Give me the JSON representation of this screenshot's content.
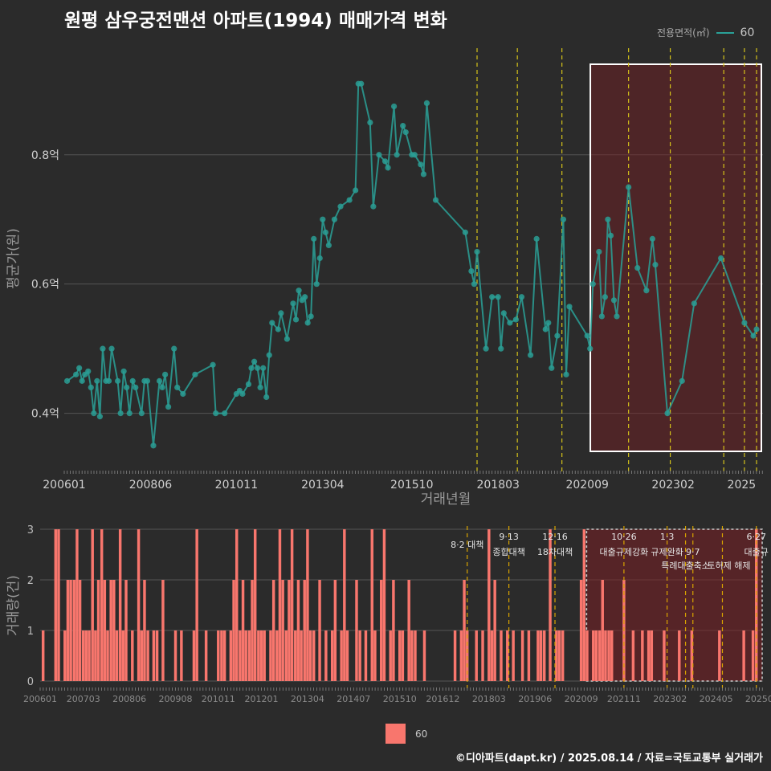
{
  "title": "원평 삼우궁전맨션 아파트(1994) 매매가격 변화",
  "legend": {
    "area_label": "전용면적(㎡)",
    "area_value": "60",
    "line_color": "#2aa198"
  },
  "bottom_legend": {
    "value": "60",
    "color": "#f8766d"
  },
  "credit": "©디아파트(dapt.kr) / 2025.08.14 / 자료=국토교통부 실거래가",
  "chart_data": [
    {
      "type": "line",
      "name": "price",
      "xlabel": "거래년월",
      "ylabel": "평균가(원)",
      "xlim": [
        2006.0,
        2025.6
      ],
      "ylim": [
        0.315,
        0.965
      ],
      "y_ticks": [
        {
          "v": 0.4,
          "label": "0.4억"
        },
        {
          "v": 0.6,
          "label": "0.6억"
        },
        {
          "v": 0.8,
          "label": "0.8억"
        }
      ],
      "x_ticks": [
        {
          "v": 2006.0,
          "label": "200601"
        },
        {
          "v": 2008.42,
          "label": "200806"
        },
        {
          "v": 2010.83,
          "label": "201011"
        },
        {
          "v": 2013.25,
          "label": "201304"
        },
        {
          "v": 2015.75,
          "label": "201510"
        },
        {
          "v": 2018.17,
          "label": "201803"
        },
        {
          "v": 2020.67,
          "label": "202009"
        },
        {
          "v": 2023.08,
          "label": "202302"
        },
        {
          "v": 2025.0,
          "label": "2025"
        }
      ],
      "policy_lines": [
        2017.58,
        2018.71,
        2019.96,
        2021.83,
        2023.0,
        2024.5,
        2025.08,
        2025.42
      ],
      "highlight_x": [
        2020.6,
        2025.6
      ],
      "series": [
        {
          "name": "60",
          "values": [
            [
              2006.08,
              0.45
            ],
            [
              2006.33,
              0.46
            ],
            [
              2006.42,
              0.47
            ],
            [
              2006.5,
              0.45
            ],
            [
              2006.58,
              0.46
            ],
            [
              2006.67,
              0.465
            ],
            [
              2006.75,
              0.44
            ],
            [
              2006.83,
              0.4
            ],
            [
              2006.92,
              0.45
            ],
            [
              2007.0,
              0.395
            ],
            [
              2007.08,
              0.5
            ],
            [
              2007.17,
              0.45
            ],
            [
              2007.25,
              0.45
            ],
            [
              2007.33,
              0.5
            ],
            [
              2007.5,
              0.45
            ],
            [
              2007.58,
              0.4
            ],
            [
              2007.67,
              0.465
            ],
            [
              2007.75,
              0.44
            ],
            [
              2007.83,
              0.4
            ],
            [
              2007.92,
              0.45
            ],
            [
              2008.0,
              0.44
            ],
            [
              2008.17,
              0.4
            ],
            [
              2008.25,
              0.45
            ],
            [
              2008.33,
              0.45
            ],
            [
              2008.5,
              0.35
            ],
            [
              2008.67,
              0.45
            ],
            [
              2008.75,
              0.44
            ],
            [
              2008.83,
              0.46
            ],
            [
              2008.92,
              0.41
            ],
            [
              2009.08,
              0.5
            ],
            [
              2009.17,
              0.44
            ],
            [
              2009.33,
              0.43
            ],
            [
              2009.67,
              0.46
            ],
            [
              2010.17,
              0.475
            ],
            [
              2010.25,
              0.4
            ],
            [
              2010.5,
              0.4
            ],
            [
              2010.83,
              0.43
            ],
            [
              2010.92,
              0.435
            ],
            [
              2011.0,
              0.43
            ],
            [
              2011.17,
              0.445
            ],
            [
              2011.25,
              0.47
            ],
            [
              2011.33,
              0.48
            ],
            [
              2011.42,
              0.47
            ],
            [
              2011.5,
              0.44
            ],
            [
              2011.58,
              0.47
            ],
            [
              2011.67,
              0.425
            ],
            [
              2011.75,
              0.49
            ],
            [
              2011.83,
              0.54
            ],
            [
              2012.0,
              0.53
            ],
            [
              2012.08,
              0.555
            ],
            [
              2012.25,
              0.515
            ],
            [
              2012.42,
              0.57
            ],
            [
              2012.5,
              0.545
            ],
            [
              2012.58,
              0.59
            ],
            [
              2012.67,
              0.575
            ],
            [
              2012.75,
              0.58
            ],
            [
              2012.83,
              0.54
            ],
            [
              2012.92,
              0.55
            ],
            [
              2013.0,
              0.67
            ],
            [
              2013.08,
              0.6
            ],
            [
              2013.17,
              0.64
            ],
            [
              2013.25,
              0.7
            ],
            [
              2013.33,
              0.68
            ],
            [
              2013.42,
              0.66
            ],
            [
              2013.58,
              0.7
            ],
            [
              2013.75,
              0.72
            ],
            [
              2014.0,
              0.73
            ],
            [
              2014.17,
              0.745
            ],
            [
              2014.25,
              0.91
            ],
            [
              2014.33,
              0.91
            ],
            [
              2014.58,
              0.85
            ],
            [
              2014.67,
              0.72
            ],
            [
              2014.83,
              0.8
            ],
            [
              2015.0,
              0.79
            ],
            [
              2015.08,
              0.78
            ],
            [
              2015.25,
              0.875
            ],
            [
              2015.33,
              0.8
            ],
            [
              2015.5,
              0.845
            ],
            [
              2015.58,
              0.835
            ],
            [
              2015.75,
              0.8
            ],
            [
              2015.83,
              0.8
            ],
            [
              2016.0,
              0.785
            ],
            [
              2016.08,
              0.77
            ],
            [
              2016.17,
              0.88
            ],
            [
              2016.42,
              0.73
            ],
            [
              2017.25,
              0.68
            ],
            [
              2017.42,
              0.62
            ],
            [
              2017.5,
              0.6
            ],
            [
              2017.58,
              0.65
            ],
            [
              2017.83,
              0.5
            ],
            [
              2018.0,
              0.58
            ],
            [
              2018.17,
              0.58
            ],
            [
              2018.25,
              0.5
            ],
            [
              2018.33,
              0.555
            ],
            [
              2018.5,
              0.54
            ],
            [
              2018.67,
              0.545
            ],
            [
              2018.83,
              0.58
            ],
            [
              2019.08,
              0.49
            ],
            [
              2019.25,
              0.67
            ],
            [
              2019.5,
              0.53
            ],
            [
              2019.58,
              0.54
            ],
            [
              2019.67,
              0.47
            ],
            [
              2019.83,
              0.52
            ],
            [
              2020.0,
              0.7
            ],
            [
              2020.08,
              0.46
            ],
            [
              2020.17,
              0.565
            ],
            [
              2020.67,
              0.52
            ],
            [
              2020.75,
              0.5
            ],
            [
              2020.83,
              0.6
            ],
            [
              2021.0,
              0.65
            ],
            [
              2021.08,
              0.55
            ],
            [
              2021.17,
              0.58
            ],
            [
              2021.25,
              0.7
            ],
            [
              2021.33,
              0.675
            ],
            [
              2021.42,
              0.575
            ],
            [
              2021.5,
              0.55
            ],
            [
              2021.83,
              0.75
            ],
            [
              2022.08,
              0.625
            ],
            [
              2022.33,
              0.59
            ],
            [
              2022.5,
              0.67
            ],
            [
              2022.58,
              0.63
            ],
            [
              2022.92,
              0.4
            ],
            [
              2023.33,
              0.45
            ],
            [
              2023.67,
              0.57
            ],
            [
              2024.42,
              0.64
            ],
            [
              2025.08,
              0.54
            ],
            [
              2025.33,
              0.52
            ],
            [
              2025.42,
              0.53
            ]
          ]
        }
      ]
    },
    {
      "type": "bar",
      "name": "volume",
      "xlabel": "",
      "ylabel": "거래량(건)",
      "xlim": [
        2006.0,
        2025.6
      ],
      "ylim": [
        0,
        3
      ],
      "y_ticks": [
        {
          "v": 0,
          "label": "0"
        },
        {
          "v": 1,
          "label": "1"
        },
        {
          "v": 2,
          "label": "2"
        },
        {
          "v": 3,
          "label": "3"
        }
      ],
      "x_ticks": [
        {
          "v": 2006.0,
          "label": "200601"
        },
        {
          "v": 2007.17,
          "label": "200703"
        },
        {
          "v": 2008.42,
          "label": "200806"
        },
        {
          "v": 2009.67,
          "label": "200908"
        },
        {
          "v": 2010.83,
          "label": "201011"
        },
        {
          "v": 2012.0,
          "label": "201201"
        },
        {
          "v": 2013.25,
          "label": "201304"
        },
        {
          "v": 2014.5,
          "label": "201407"
        },
        {
          "v": 2015.75,
          "label": "201510"
        },
        {
          "v": 2016.92,
          "label": "201612"
        },
        {
          "v": 2018.17,
          "label": "201803"
        },
        {
          "v": 2019.42,
          "label": "201906"
        },
        {
          "v": 2020.67,
          "label": "202009"
        },
        {
          "v": 2021.83,
          "label": "202111"
        },
        {
          "v": 2023.08,
          "label": "202302"
        },
        {
          "v": 2024.33,
          "label": "202405"
        },
        {
          "v": 2025.5,
          "label": "20250"
        }
      ],
      "policies": [
        {
          "x": 2017.58,
          "date": "",
          "text": "8·2 대책"
        },
        {
          "x": 2018.71,
          "date": "9·13",
          "text": "종합대책"
        },
        {
          "x": 2019.96,
          "date": "12·16",
          "text": "18차대책"
        },
        {
          "x": 2021.83,
          "date": "10·26",
          "text": "대출규제강화"
        },
        {
          "x": 2023.0,
          "date": "1·3",
          "text": "규제완화"
        },
        {
          "x": 2023.7,
          "date": "",
          "text": "9·7"
        },
        {
          "x": 2023.5,
          "date": "",
          "text": "특례대출축소"
        },
        {
          "x": 2024.5,
          "date": "",
          "text": "토허제 해제"
        },
        {
          "x": 2025.42,
          "date": "6·27",
          "text": "대출규"
        }
      ],
      "highlight_x": [
        2020.6,
        2025.6
      ],
      "categories": [
        2006.08,
        2006.42,
        2006.5,
        2006.67,
        2006.75,
        2006.83,
        2006.92,
        2007.0,
        2007.08,
        2007.17,
        2007.25,
        2007.33,
        2007.42,
        2007.5,
        2007.58,
        2007.67,
        2007.75,
        2007.83,
        2007.92,
        2008.0,
        2008.08,
        2008.17,
        2008.25,
        2008.33,
        2008.5,
        2008.67,
        2008.75,
        2008.83,
        2008.92,
        2009.08,
        2009.17,
        2009.33,
        2009.67,
        2009.83,
        2010.17,
        2010.25,
        2010.5,
        2010.83,
        2010.92,
        2011.0,
        2011.17,
        2011.25,
        2011.33,
        2011.42,
        2011.5,
        2011.58,
        2011.67,
        2011.75,
        2011.83,
        2011.92,
        2012.0,
        2012.08,
        2012.25,
        2012.33,
        2012.42,
        2012.5,
        2012.58,
        2012.67,
        2012.75,
        2012.83,
        2012.92,
        2013.0,
        2013.08,
        2013.17,
        2013.25,
        2013.33,
        2013.42,
        2013.58,
        2013.75,
        2013.92,
        2014.0,
        2014.17,
        2014.25,
        2014.33,
        2014.58,
        2014.67,
        2014.83,
        2015.0,
        2015.08,
        2015.25,
        2015.33,
        2015.5,
        2015.58,
        2015.75,
        2015.83,
        2016.0,
        2016.08,
        2016.17,
        2016.42,
        2017.25,
        2017.42,
        2017.5,
        2017.58,
        2017.83,
        2018.0,
        2018.17,
        2018.25,
        2018.33,
        2018.5,
        2018.67,
        2018.83,
        2019.08,
        2019.25,
        2019.5,
        2019.58,
        2019.67,
        2019.83,
        2020.0,
        2020.08,
        2020.17,
        2020.67,
        2020.75,
        2020.83,
        2021.0,
        2021.08,
        2021.17,
        2021.25,
        2021.33,
        2021.42,
        2021.5,
        2021.83,
        2022.08,
        2022.33,
        2022.5,
        2022.58,
        2022.92,
        2023.33,
        2023.67,
        2024.42,
        2025.08,
        2025.33,
        2025.42
      ],
      "values": [
        1,
        3,
        3,
        1,
        2,
        2,
        2,
        3,
        2,
        1,
        1,
        1,
        3,
        1,
        2,
        3,
        2,
        1,
        2,
        2,
        1,
        3,
        1,
        2,
        1,
        3,
        1,
        2,
        1,
        1,
        1,
        2,
        1,
        1,
        1,
        3,
        1,
        1,
        1,
        1,
        1,
        2,
        3,
        1,
        2,
        1,
        1,
        2,
        3,
        1,
        1,
        1,
        1,
        2,
        1,
        3,
        2,
        1,
        2,
        3,
        1,
        2,
        1,
        2,
        3,
        1,
        1,
        2,
        1,
        1,
        2,
        1,
        3,
        1,
        2,
        1,
        1,
        3,
        1,
        2,
        3,
        1,
        2,
        1,
        1,
        2,
        1,
        1,
        1,
        1,
        1,
        2,
        1,
        1,
        1,
        3,
        1,
        2,
        1,
        1,
        1,
        1,
        1,
        1,
        1,
        1,
        3,
        1,
        1,
        1,
        2,
        3,
        1,
        1,
        1,
        1,
        2,
        1,
        1,
        1,
        2,
        1,
        1,
        1,
        1,
        1,
        1,
        1,
        1,
        1,
        1,
        3
      ]
    }
  ]
}
